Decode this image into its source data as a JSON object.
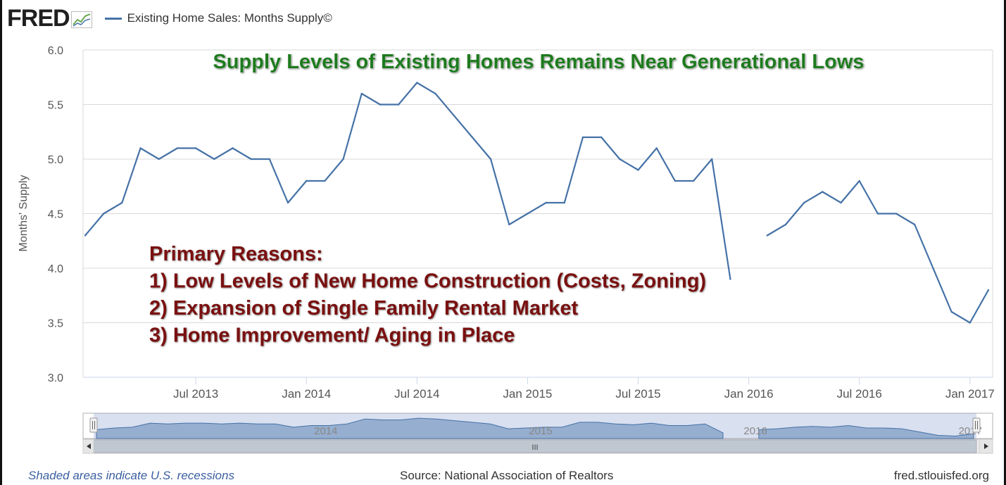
{
  "header": {
    "logo_text": "FRED",
    "logo_icon": "chart-line-icon",
    "series_title": "Existing Home Sales: Months Supply©"
  },
  "chart_data": {
    "type": "line",
    "ylabel": "Months' Supply",
    "ylim": [
      3.0,
      6.0
    ],
    "yticks": [
      "3.0",
      "3.5",
      "4.0",
      "4.5",
      "5.0",
      "5.5",
      "6.0"
    ],
    "xticks": [
      {
        "label": "Jul 2013",
        "month": 6
      },
      {
        "label": "Jan 2014",
        "month": 12
      },
      {
        "label": "Jul 2014",
        "month": 18
      },
      {
        "label": "Jan 2015",
        "month": 24
      },
      {
        "label": "Jul 2015",
        "month": 30
      },
      {
        "label": "Jan 2016",
        "month": 36
      },
      {
        "label": "Jul 2016",
        "month": 42
      },
      {
        "label": "Jan 2017",
        "month": 48
      }
    ],
    "x_start": "Jan 2013",
    "series": [
      {
        "values": [
          4.3,
          4.5,
          4.6,
          5.1,
          5.0,
          5.1,
          5.1,
          5.0,
          5.1,
          5.0,
          5.0,
          4.6,
          4.8,
          4.8,
          5.0,
          5.6,
          5.5,
          5.5,
          5.7,
          5.6,
          5.4,
          5.2,
          5.0,
          4.4,
          4.5,
          4.6,
          4.6,
          5.2,
          5.2,
          5.0,
          4.9,
          5.1,
          4.8,
          4.8,
          5.0,
          3.9,
          null,
          4.3,
          4.4,
          4.6,
          4.7,
          4.6,
          4.8,
          4.5,
          4.5,
          4.4,
          4.0,
          3.6,
          3.5,
          3.8
        ]
      }
    ],
    "annotations": [
      {
        "text": "Supply Levels of Existing Homes Remains Near Generational Lows",
        "color": "#1e7a1e"
      },
      {
        "lines": [
          "Primary Reasons:",
          "1) Low Levels of New Home Construction (Costs, Zoning)",
          "2) Expansion of Single Family Rental Market",
          "3) Home Improvement/ Aging in Place"
        ],
        "color": "#7a1010"
      }
    ],
    "navigator": {
      "year_labels": [
        "2014",
        "2015",
        "2016",
        "2017"
      ],
      "scroll_grip": "III"
    },
    "line_color": "#4572a7",
    "grid": true
  },
  "footer": {
    "note": "Shaded areas indicate U.S. recessions",
    "source": "Source: National Association of Realtors",
    "site": "fred.stlouisfed.org"
  }
}
